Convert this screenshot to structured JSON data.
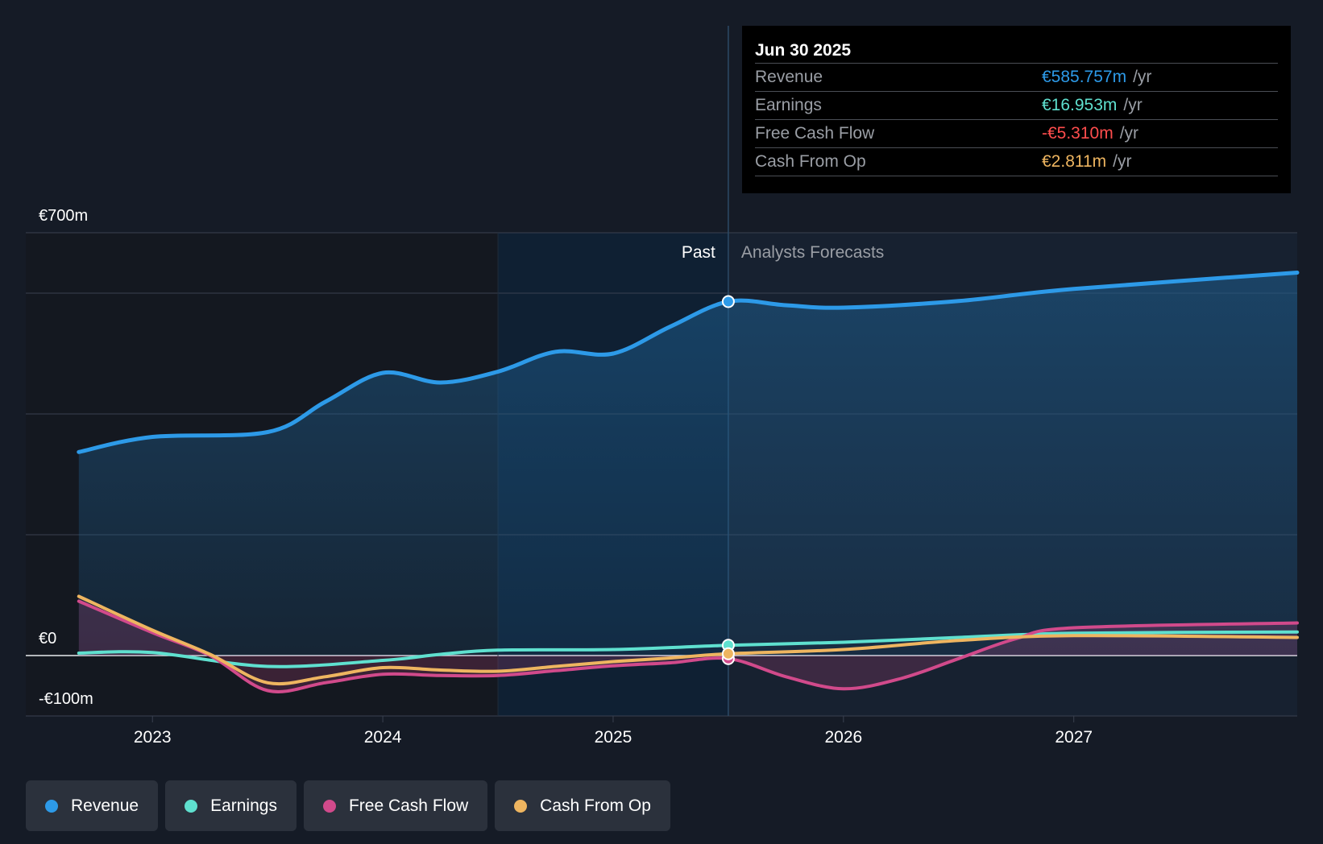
{
  "colors": {
    "revenue": "#2d9ae8",
    "earnings": "#5fe0cf",
    "fcf": "#d14a8b",
    "cfo": "#eeb560",
    "negative": "#ff4d4d",
    "background": "#151b26"
  },
  "tooltip": {
    "date": "Jun 30 2025",
    "unit": "/yr",
    "rows": [
      {
        "label": "Revenue",
        "value": "€585.757m"
      },
      {
        "label": "Earnings",
        "value": "€16.953m"
      },
      {
        "label": "Free Cash Flow",
        "value": "-€5.310m"
      },
      {
        "label": "Cash From Op",
        "value": "€2.811m"
      }
    ]
  },
  "legend": [
    {
      "label": "Revenue",
      "icon": "revenue-dot-icon"
    },
    {
      "label": "Earnings",
      "icon": "earnings-dot-icon"
    },
    {
      "label": "Free Cash Flow",
      "icon": "fcf-dot-icon"
    },
    {
      "label": "Cash From Op",
      "icon": "cfo-dot-icon"
    }
  ],
  "chart_data": {
    "type": "line",
    "title": "",
    "xlabel": "",
    "ylabel": "",
    "ylim": [
      -100,
      700
    ],
    "xlim": [
      2022.45,
      2027.97
    ],
    "y_tick_labels": [
      {
        "value": 700,
        "label": "€700m"
      },
      {
        "value": 0,
        "label": "€0"
      },
      {
        "value": -100,
        "label": "-€100m"
      }
    ],
    "gridlines": [
      700,
      600,
      400,
      200,
      0,
      -100
    ],
    "x_ticks": [
      {
        "value": 2023,
        "label": "2023"
      },
      {
        "value": 2024,
        "label": "2024"
      },
      {
        "value": 2025,
        "label": "2025"
      },
      {
        "value": 2026,
        "label": "2026"
      },
      {
        "value": 2027,
        "label": "2027"
      }
    ],
    "past_label": "Past",
    "forecast_label": "Analysts Forecasts",
    "highlight_start": 2024.5,
    "divider_x": 2025.5,
    "series": [
      {
        "name": "Revenue",
        "key": "revenue",
        "area": true,
        "points": [
          [
            2022.68,
            337
          ],
          [
            2023.0,
            362
          ],
          [
            2023.5,
            370
          ],
          [
            2023.75,
            420
          ],
          [
            2024.0,
            468
          ],
          [
            2024.25,
            452
          ],
          [
            2024.5,
            470
          ],
          [
            2024.75,
            503
          ],
          [
            2025.0,
            500
          ],
          [
            2025.25,
            545
          ],
          [
            2025.5,
            586
          ],
          [
            2025.75,
            580
          ],
          [
            2026.0,
            576
          ],
          [
            2026.5,
            587
          ],
          [
            2027.0,
            607
          ],
          [
            2027.97,
            634
          ]
        ]
      },
      {
        "name": "Earnings",
        "key": "earnings",
        "area": false,
        "points": [
          [
            2022.68,
            4
          ],
          [
            2023.0,
            5
          ],
          [
            2023.5,
            -18
          ],
          [
            2024.0,
            -8
          ],
          [
            2024.25,
            2
          ],
          [
            2024.5,
            9
          ],
          [
            2025.0,
            10
          ],
          [
            2025.5,
            17
          ],
          [
            2026.0,
            22
          ],
          [
            2026.5,
            30
          ],
          [
            2027.0,
            37
          ],
          [
            2027.97,
            39
          ]
        ]
      },
      {
        "name": "Free Cash Flow",
        "key": "fcf",
        "area": true,
        "points": [
          [
            2022.68,
            90
          ],
          [
            2023.0,
            38
          ],
          [
            2023.25,
            0
          ],
          [
            2023.5,
            -58
          ],
          [
            2023.75,
            -45
          ],
          [
            2024.0,
            -31
          ],
          [
            2024.25,
            -33
          ],
          [
            2024.5,
            -33
          ],
          [
            2024.75,
            -25
          ],
          [
            2025.0,
            -17
          ],
          [
            2025.25,
            -12
          ],
          [
            2025.5,
            -5
          ],
          [
            2025.75,
            -35
          ],
          [
            2026.0,
            -55
          ],
          [
            2026.25,
            -38
          ],
          [
            2026.5,
            -5
          ],
          [
            2026.75,
            28
          ],
          [
            2027.0,
            46
          ],
          [
            2027.97,
            54
          ]
        ]
      },
      {
        "name": "Cash From Op",
        "key": "cfo",
        "area": false,
        "points": [
          [
            2022.68,
            98
          ],
          [
            2023.0,
            42
          ],
          [
            2023.25,
            2
          ],
          [
            2023.5,
            -45
          ],
          [
            2023.75,
            -35
          ],
          [
            2024.0,
            -20
          ],
          [
            2024.25,
            -24
          ],
          [
            2024.5,
            -26
          ],
          [
            2024.75,
            -18
          ],
          [
            2025.0,
            -10
          ],
          [
            2025.25,
            -4
          ],
          [
            2025.5,
            3
          ],
          [
            2026.0,
            10
          ],
          [
            2026.5,
            25
          ],
          [
            2027.0,
            33
          ],
          [
            2027.97,
            30
          ]
        ]
      }
    ],
    "highlight_values": {
      "Revenue": 585.757,
      "Earnings": 16.953,
      "Free Cash Flow": -5.31,
      "Cash From Op": 2.811
    }
  }
}
